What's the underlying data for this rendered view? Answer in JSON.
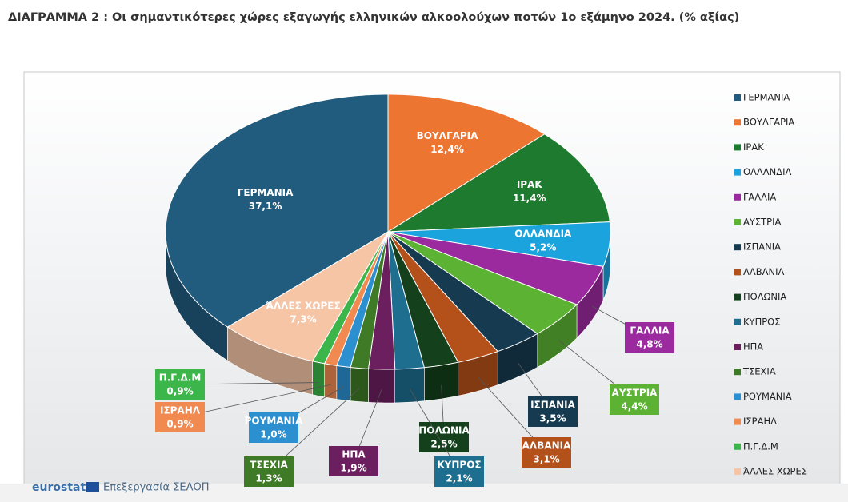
{
  "chart_data": {
    "type": "pie",
    "title": "ΔΙΑΓΡΑΜΜΑ 2 : Οι σημαντικότερες χώρες εξαγωγής ελληνικών αλκοολούχων ποτών 1ο εξάμηνο 2024. (% αξίας)",
    "categories": [
      "ΓΕΡΜΑΝΙΑ",
      "ΒΟΥΛΓΑΡΙΑ",
      "ΙΡΑΚ",
      "ΟΛΛΑΝΔΙΑ",
      "ΓΑΛΛΙΑ",
      "ΑΥΣΤΡΙΑ",
      "ΙΣΠΑΝΙΑ",
      "ΑΛΒΑΝΙΑ",
      "ΠΟΛΩΝΙΑ",
      "ΚΥΠΡΟΣ",
      "ΗΠΑ",
      "ΤΣΕΧΙΑ",
      "ΡΟΥΜΑΝΙΑ",
      "ΙΣΡΑΗΛ",
      "Π.Γ.Δ.Μ",
      "ΆΛΛΕΣ ΧΩΡΕΣ"
    ],
    "values": [
      37.1,
      12.4,
      11.4,
      5.2,
      4.8,
      4.4,
      3.5,
      3.1,
      2.5,
      2.1,
      1.9,
      1.3,
      1.0,
      0.9,
      0.9,
      7.3
    ],
    "value_labels": [
      "37,1%",
      "12,4%",
      "11,4%",
      "5,2%",
      "4,8%",
      "4,4%",
      "3,5%",
      "3,1%",
      "2,5%",
      "2,1%",
      "1,9%",
      "1,3%",
      "1,0%",
      "0,9%",
      "0,9%",
      "7,3%"
    ],
    "colors": [
      "#215c7e",
      "#ed7532",
      "#1e7a2e",
      "#1aa3dd",
      "#9a2a9e",
      "#5cb233",
      "#163a50",
      "#b4501a",
      "#14401c",
      "#1d6e8f",
      "#6b1f5e",
      "#3f7a26",
      "#2b8fd0",
      "#f08a50",
      "#3cb54a",
      "#f6c5a6"
    ],
    "legend": "right",
    "logo": "eurostat",
    "source": "Επεξεργασία ΣΕΑΟΠ"
  }
}
